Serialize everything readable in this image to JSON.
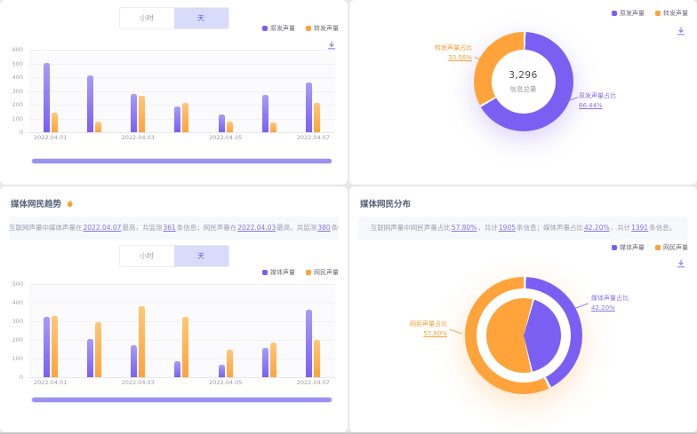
{
  "toggle": {
    "options": [
      "小时",
      "天"
    ],
    "active": "天"
  },
  "colors": {
    "purple": "#7b5ff2",
    "purple_light": "#a89bf8",
    "orange": "#ffa33a",
    "orange_light": "#ffc777",
    "toggle_active_bg": "#d9dbfa",
    "toggle_active_text": "#5f5fd7",
    "scrollbar": "#9a92f0"
  },
  "icons": {
    "download": "download-icon",
    "fire": "fire-icon"
  },
  "panels": {
    "volume_trend": {},
    "volume_distribution": {
      "center_value": "3,296",
      "center_label": "信息总量"
    },
    "media_netizen_trend": {
      "title": "媒体网民趋势",
      "description_parts": [
        {
          "t": "互联网声量中媒体声量在",
          "h": false
        },
        {
          "t": "2022.04.07",
          "h": true
        },
        {
          "t": "最高，共监测",
          "h": false
        },
        {
          "t": "361",
          "h": true
        },
        {
          "t": "条信息；网民声量在",
          "h": false
        },
        {
          "t": "2022.04.03",
          "h": true
        },
        {
          "t": "最高，共监测",
          "h": false
        },
        {
          "t": "380",
          "h": true
        },
        {
          "t": "条信息。",
          "h": false
        }
      ]
    },
    "media_netizen_distribution": {
      "title": "媒体网民分布",
      "description_parts": [
        {
          "t": "互联网声量中网民声量占比",
          "h": false
        },
        {
          "t": "57.80%",
          "h": true
        },
        {
          "t": "，共计",
          "h": false
        },
        {
          "t": "1905",
          "h": true
        },
        {
          "t": "条信息；媒体声量占比",
          "h": false
        },
        {
          "t": "42.20%",
          "h": true
        },
        {
          "t": "，共计",
          "h": false
        },
        {
          "t": "1391",
          "h": true
        },
        {
          "t": "条信息。",
          "h": false
        }
      ]
    }
  },
  "chart_data": [
    {
      "id": "volume-trend-bar",
      "type": "bar",
      "x": [
        "2022.04.01",
        "2022.04.02",
        "2022.04.03",
        "2022.04.04",
        "2022.04.05",
        "2022.04.06",
        "2022.04.07"
      ],
      "visible_x_ticks": [
        "2022.04.01",
        "2022.04.03",
        "2022.04.05",
        "2022.04.07"
      ],
      "series": [
        {
          "name": "原发声量",
          "color": "#7b5ff2",
          "color_light": "#a89bf8",
          "values": [
            505,
            410,
            280,
            185,
            130,
            270,
            361
          ]
        },
        {
          "name": "转发声量",
          "color": "#ffa33a",
          "color_light": "#ffc777",
          "values": [
            140,
            80,
            262,
            215,
            78,
            68,
            210
          ]
        }
      ],
      "ylim": [
        0,
        600
      ],
      "ytick_step": 100,
      "grid": true,
      "legend_position": "top-right"
    },
    {
      "id": "volume-distribution-donut",
      "type": "pie",
      "center": {
        "value": "3,296",
        "label": "信息总量"
      },
      "legend": [
        "原发声量",
        "转发声量"
      ],
      "slices": [
        {
          "name": "原发声量占比",
          "pct": 66.44,
          "pct_label": "66.44%",
          "color": "#7b5ff2"
        },
        {
          "name": "转发声量占比",
          "pct": 33.56,
          "pct_label": "33.56%",
          "color": "#ffa33a"
        }
      ]
    },
    {
      "id": "media-netizen-trend-bar",
      "type": "bar",
      "x": [
        "2022.04.01",
        "2022.04.02",
        "2022.04.03",
        "2022.04.04",
        "2022.04.05",
        "2022.04.06",
        "2022.04.07"
      ],
      "visible_x_ticks": [
        "2022.04.01",
        "2022.04.03",
        "2022.04.05",
        "2022.04.07"
      ],
      "series": [
        {
          "name": "媒体声量",
          "color": "#7b5ff2",
          "color_light": "#a89bf8",
          "values": [
            325,
            203,
            170,
            86,
            66,
            155,
            361
          ]
        },
        {
          "name": "网民声量",
          "color": "#ffa33a",
          "color_light": "#ffc777",
          "values": [
            330,
            296,
            380,
            322,
            150,
            185,
            200
          ]
        }
      ],
      "ylim": [
        0,
        500
      ],
      "ytick_step": 100,
      "grid": true,
      "legend_position": "top-right"
    },
    {
      "id": "media-netizen-distribution-pie",
      "type": "pie",
      "legend": [
        "媒体声量",
        "网民声量"
      ],
      "slices": [
        {
          "name": "媒体声量占比",
          "pct": 42.2,
          "pct_label": "42.20%",
          "color": "#7b5ff2"
        },
        {
          "name": "网民声量占比",
          "pct": 57.8,
          "pct_label": "57.80%",
          "color": "#ffa33a"
        }
      ]
    }
  ]
}
